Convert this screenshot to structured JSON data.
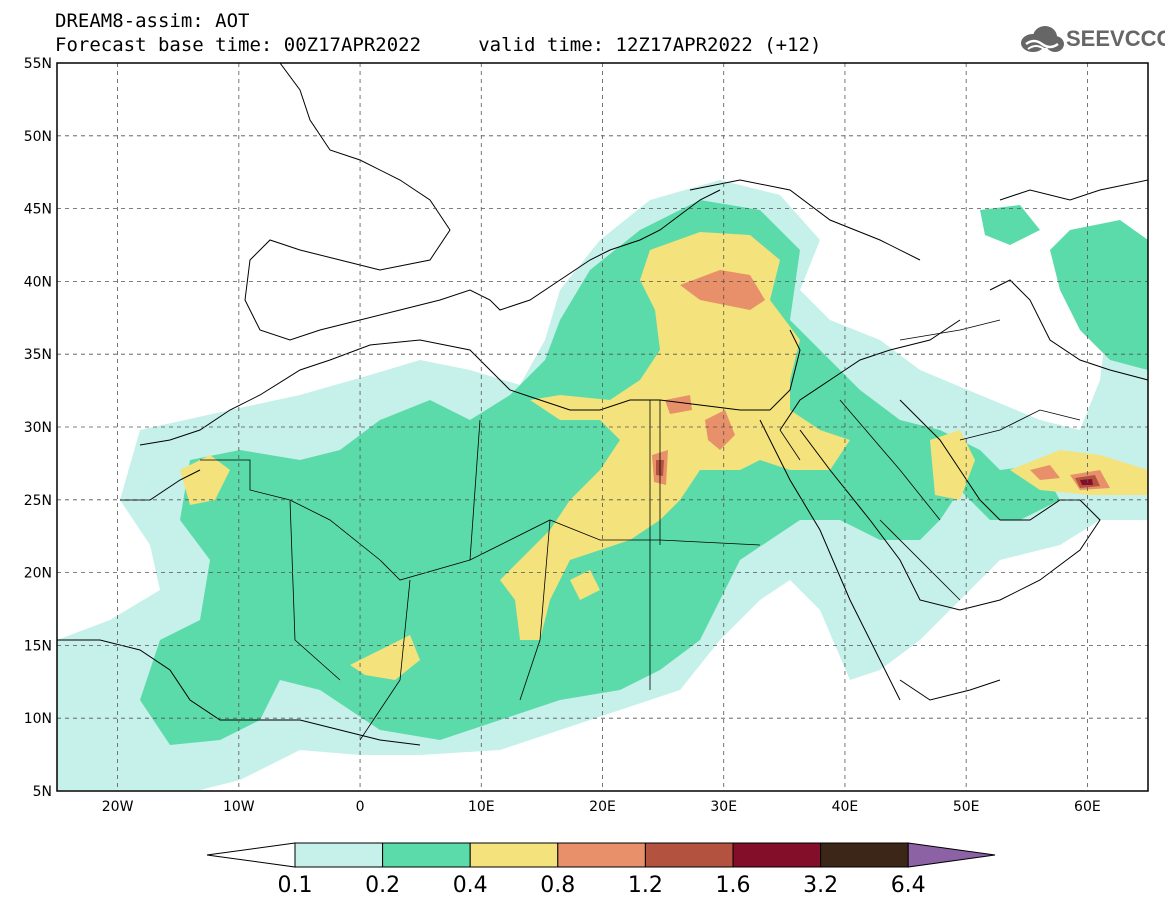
{
  "header": {
    "title_line1": "DREAM8-assim: AOT",
    "title_line2": "Forecast base time: 00Z17APR2022     valid time: 12Z17APR2022 (+12)",
    "logo_text": "SEEVCCC",
    "logo_icon": "cloud-icon"
  },
  "map": {
    "lon_range": [
      -25,
      65
    ],
    "lat_range": [
      5,
      55
    ],
    "lat_labels": [
      "55N",
      "50N",
      "45N",
      "40N",
      "35N",
      "30N",
      "25N",
      "20N",
      "15N",
      "10N",
      "5N"
    ],
    "lon_labels": [
      "20W",
      "10W",
      "0",
      "10E",
      "20E",
      "30E",
      "40E",
      "50E",
      "60E"
    ],
    "grid": true,
    "grid_style": "dashed"
  },
  "colorbar": {
    "levels": [
      "0.1",
      "0.2",
      "0.4",
      "0.8",
      "1.2",
      "1.6",
      "3.2",
      "6.4"
    ],
    "colors": [
      "#ffffff",
      "#c6f0ea",
      "#5bdbaa",
      "#f4e27c",
      "#e7906a",
      "#b3523f",
      "#820e2a",
      "#3b2617",
      "#8c62a5"
    ]
  }
}
